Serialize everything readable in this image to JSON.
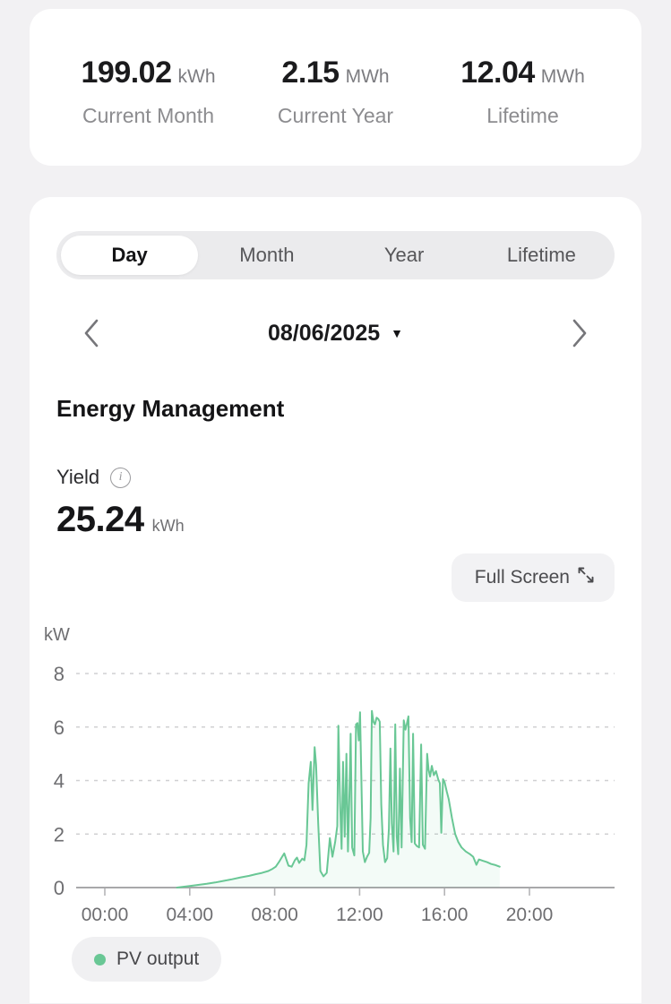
{
  "stats_card": {
    "items": [
      {
        "value": "199.02",
        "unit": "kWh",
        "label": "Current Month"
      },
      {
        "value": "2.15",
        "unit": "MWh",
        "label": "Current Year"
      },
      {
        "value": "12.04",
        "unit": "MWh",
        "label": "Lifetime"
      }
    ]
  },
  "chart_card": {
    "tabs": {
      "items": [
        {
          "label": "Day",
          "active": true
        },
        {
          "label": "Month",
          "active": false
        },
        {
          "label": "Year",
          "active": false
        },
        {
          "label": "Lifetime",
          "active": false
        }
      ]
    },
    "date_selector": {
      "value": "08/06/2025",
      "dropdown_icon": "▼"
    },
    "section_title": "Energy Management",
    "yield": {
      "label": "Yield",
      "value": "25.24",
      "unit": "kWh"
    },
    "full_screen_label": "Full Screen",
    "legend": {
      "label": "PV output",
      "color": "#69c795"
    }
  },
  "chart_data": {
    "type": "area",
    "ylabel": "kW",
    "yticks": [
      0,
      2,
      4,
      6,
      8
    ],
    "ylim": [
      0,
      8.8
    ],
    "x_hours_range": [
      0,
      24
    ],
    "xticks": [
      {
        "hour": 0,
        "label": "00:00"
      },
      {
        "hour": 4,
        "label": "04:00"
      },
      {
        "hour": 8,
        "label": "08:00"
      },
      {
        "hour": 12,
        "label": "12:00"
      },
      {
        "hour": 16,
        "label": "16:00"
      },
      {
        "hour": 20,
        "label": "20:00"
      }
    ],
    "grid": "dashed-horizontal-only",
    "legend_position": "bottom-left",
    "series": [
      {
        "name": "PV output",
        "color": "#69c795",
        "fill_opacity": 0.08,
        "points_hour_kw": [
          [
            3.4,
            0.0
          ],
          [
            3.7,
            0.03
          ],
          [
            4.0,
            0.06
          ],
          [
            4.4,
            0.1
          ],
          [
            4.8,
            0.14
          ],
          [
            5.2,
            0.19
          ],
          [
            5.6,
            0.25
          ],
          [
            6.0,
            0.31
          ],
          [
            6.4,
            0.38
          ],
          [
            6.8,
            0.44
          ],
          [
            7.1,
            0.5
          ],
          [
            7.4,
            0.55
          ],
          [
            7.7,
            0.62
          ],
          [
            7.9,
            0.7
          ],
          [
            8.05,
            0.78
          ],
          [
            8.2,
            0.95
          ],
          [
            8.35,
            1.15
          ],
          [
            8.45,
            1.28
          ],
          [
            8.55,
            1.05
          ],
          [
            8.65,
            0.82
          ],
          [
            8.8,
            0.78
          ],
          [
            8.95,
            1.02
          ],
          [
            9.05,
            1.12
          ],
          [
            9.15,
            0.92
          ],
          [
            9.3,
            1.08
          ],
          [
            9.4,
            1.02
          ],
          [
            9.5,
            1.6
          ],
          [
            9.6,
            3.9
          ],
          [
            9.7,
            4.7
          ],
          [
            9.78,
            2.9
          ],
          [
            9.88,
            5.25
          ],
          [
            9.95,
            4.6
          ],
          [
            10.05,
            2.4
          ],
          [
            10.15,
            0.62
          ],
          [
            10.3,
            0.42
          ],
          [
            10.45,
            0.55
          ],
          [
            10.6,
            1.85
          ],
          [
            10.72,
            1.15
          ],
          [
            10.85,
            1.7
          ],
          [
            10.95,
            2.3
          ],
          [
            11.0,
            6.05
          ],
          [
            11.08,
            3.2
          ],
          [
            11.15,
            1.45
          ],
          [
            11.22,
            4.7
          ],
          [
            11.3,
            1.9
          ],
          [
            11.38,
            5.0
          ],
          [
            11.45,
            1.35
          ],
          [
            11.52,
            3.4
          ],
          [
            11.58,
            5.75
          ],
          [
            11.65,
            1.5
          ],
          [
            11.75,
            1.2
          ],
          [
            11.83,
            6.1
          ],
          [
            11.9,
            6.15
          ],
          [
            11.96,
            5.5
          ],
          [
            12.02,
            6.55
          ],
          [
            12.08,
            4.2
          ],
          [
            12.15,
            1.35
          ],
          [
            12.25,
            0.95
          ],
          [
            12.35,
            1.15
          ],
          [
            12.45,
            1.3
          ],
          [
            12.52,
            2.6
          ],
          [
            12.58,
            6.6
          ],
          [
            12.65,
            6.2
          ],
          [
            12.72,
            6.1
          ],
          [
            12.8,
            6.35
          ],
          [
            12.88,
            6.3
          ],
          [
            12.95,
            6.2
          ],
          [
            13.02,
            3.1
          ],
          [
            13.1,
            1.6
          ],
          [
            13.2,
            0.95
          ],
          [
            13.3,
            1.1
          ],
          [
            13.38,
            2.2
          ],
          [
            13.45,
            5.2
          ],
          [
            13.52,
            2.4
          ],
          [
            13.6,
            1.35
          ],
          [
            13.68,
            6.1
          ],
          [
            13.75,
            1.9
          ],
          [
            13.82,
            1.25
          ],
          [
            13.9,
            4.45
          ],
          [
            13.98,
            1.5
          ],
          [
            14.08,
            6.25
          ],
          [
            14.16,
            5.9
          ],
          [
            14.22,
            6.1
          ],
          [
            14.3,
            6.4
          ],
          [
            14.38,
            2.6
          ],
          [
            14.45,
            1.7
          ],
          [
            14.52,
            5.75
          ],
          [
            14.6,
            1.65
          ],
          [
            14.7,
            1.55
          ],
          [
            14.8,
            1.5
          ],
          [
            14.9,
            5.35
          ],
          [
            14.98,
            1.6
          ],
          [
            15.08,
            1.45
          ],
          [
            15.18,
            5.0
          ],
          [
            15.25,
            4.4
          ],
          [
            15.32,
            4.15
          ],
          [
            15.4,
            4.55
          ],
          [
            15.5,
            4.2
          ],
          [
            15.6,
            4.35
          ],
          [
            15.7,
            4.05
          ],
          [
            15.78,
            3.9
          ],
          [
            15.85,
            2.05
          ],
          [
            15.93,
            4.05
          ],
          [
            16.0,
            3.95
          ],
          [
            16.1,
            3.6
          ],
          [
            16.2,
            3.3
          ],
          [
            16.35,
            2.6
          ],
          [
            16.5,
            2.0
          ],
          [
            16.65,
            1.7
          ],
          [
            16.8,
            1.5
          ],
          [
            17.0,
            1.35
          ],
          [
            17.2,
            1.25
          ],
          [
            17.35,
            1.15
          ],
          [
            17.5,
            0.85
          ],
          [
            17.62,
            1.05
          ],
          [
            17.8,
            1.0
          ],
          [
            18.0,
            0.95
          ],
          [
            18.2,
            0.88
          ],
          [
            18.4,
            0.84
          ],
          [
            18.6,
            0.78
          ]
        ]
      }
    ]
  }
}
